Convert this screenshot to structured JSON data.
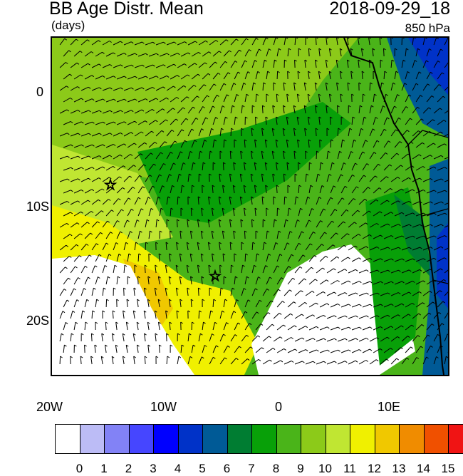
{
  "header": {
    "title": "BB Age Distr. Mean",
    "units": "(days)",
    "datetime": "2018-09-29_18",
    "level": "850 hPa"
  },
  "map": {
    "x_labels": [
      "20W",
      "10W",
      "0",
      "10E"
    ],
    "y_labels": [
      "0",
      "10S",
      "20S"
    ],
    "lon_range": [
      -20,
      15
    ],
    "lat_range": [
      -25,
      5
    ],
    "markers": [
      {
        "name": "star",
        "lon": -14.4,
        "lat": -8.0
      },
      {
        "name": "star",
        "lon": -5.7,
        "lat": -16.0
      }
    ]
  },
  "colorbar": {
    "labels": [
      "0",
      "1",
      "2",
      "3",
      "4",
      "5",
      "6",
      "7",
      "8",
      "9",
      "10",
      "11",
      "12",
      "13",
      "14",
      "15"
    ],
    "colors": [
      "#ffffff",
      "#bcbcf6",
      "#8282f6",
      "#4646ff",
      "#0000ff",
      "#0032c8",
      "#005a96",
      "#007d32",
      "#08a008",
      "#4ab419",
      "#8cca19",
      "#c0e632",
      "#f0f000",
      "#f0c800",
      "#f08c00",
      "#f05000",
      "#f01414"
    ]
  }
}
